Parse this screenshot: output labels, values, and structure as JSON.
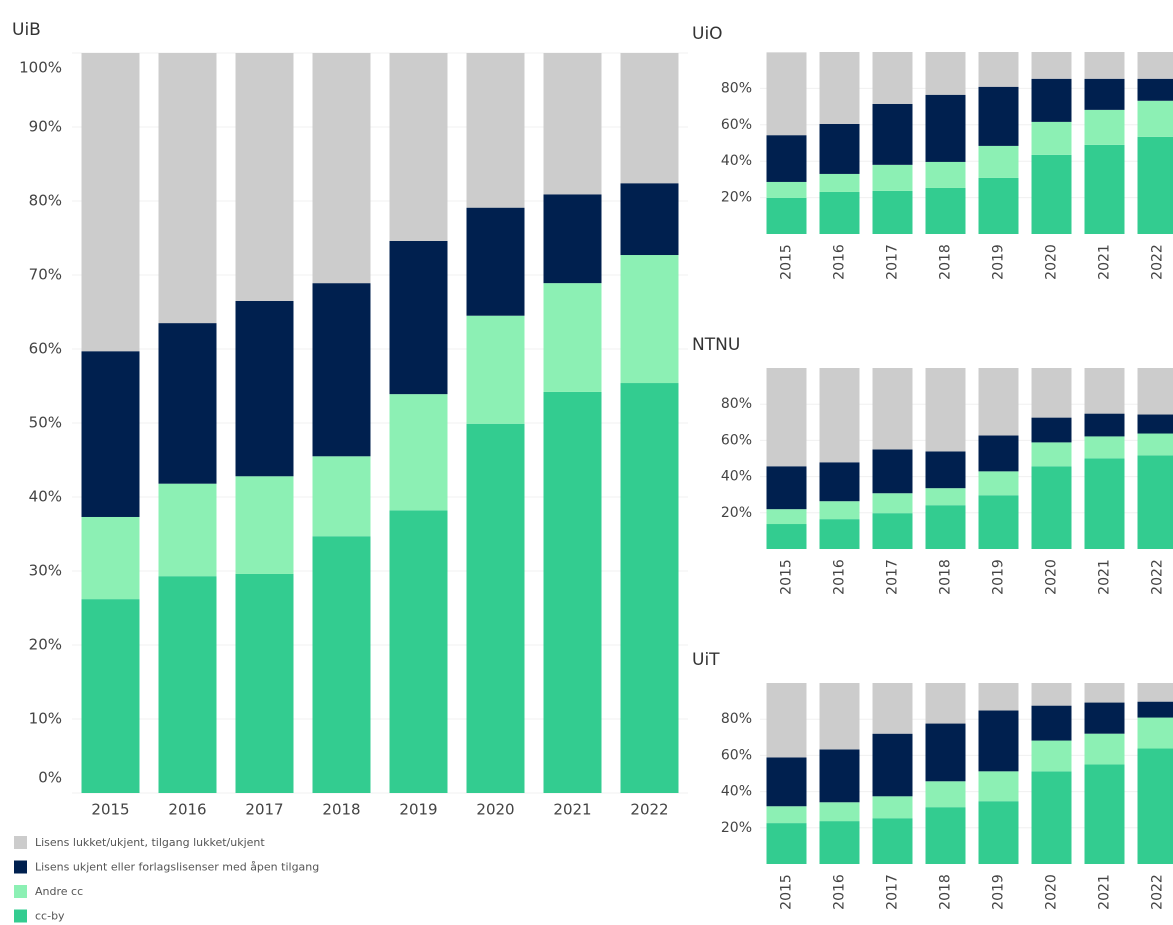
{
  "legend": [
    {
      "name": "Lisens lukket/ukjent, tilgang lukket/ukjent",
      "color": "#cccccc"
    },
    {
      "name": "Lisens ukjent eller forlagslisenser med åpen tilgang",
      "color": "#00204f"
    },
    {
      "name": "Andre cc",
      "color": "#8cf0b4"
    },
    {
      "name": "cc-by",
      "color": "#33cc90"
    }
  ],
  "chart_data": [
    {
      "type": "bar",
      "stacked": true,
      "title": "UiB",
      "grid": true,
      "categories": [
        "2015",
        "2016",
        "2017",
        "2018",
        "2019",
        "2020",
        "2021",
        "2022"
      ],
      "series": [
        {
          "values": [
            40.3,
            36.5,
            33.5,
            31.1,
            25.4,
            20.9,
            19.1,
            17.6
          ]
        },
        {
          "values": [
            22.4,
            21.7,
            23.7,
            23.4,
            20.7,
            14.6,
            12.0,
            9.7
          ]
        },
        {
          "values": [
            11.1,
            12.5,
            13.2,
            10.8,
            15.7,
            14.6,
            14.7,
            17.3
          ]
        },
        {
          "values": [
            26.2,
            29.3,
            29.6,
            34.7,
            38.2,
            49.9,
            54.2,
            55.4
          ]
        }
      ],
      "ylim": [
        0,
        100
      ],
      "yticks": [
        {
          "value": 0,
          "label": "0%"
        },
        {
          "value": 10,
          "label": "10%"
        },
        {
          "value": 20,
          "label": "20%"
        },
        {
          "value": 30,
          "label": "30%"
        },
        {
          "value": 40,
          "label": "40%"
        },
        {
          "value": 50,
          "label": "50%"
        },
        {
          "value": 60,
          "label": "60%"
        },
        {
          "value": 70,
          "label": "70%"
        },
        {
          "value": 80,
          "label": "80%"
        },
        {
          "value": 90,
          "label": "90%"
        },
        {
          "value": 100,
          "label": "100%"
        }
      ]
    },
    {
      "type": "bar",
      "stacked": true,
      "title": "UiO",
      "grid": true,
      "categories": [
        "2015",
        "2016",
        "2017",
        "2018",
        "2019",
        "2020",
        "2021",
        "2022"
      ],
      "series": [
        {
          "values": [
            45.5,
            39.5,
            28.5,
            23.5,
            19.1,
            14.7,
            14.7,
            14.7
          ]
        },
        {
          "values": [
            25.7,
            27.5,
            33.5,
            36.9,
            32.5,
            23.7,
            17.1,
            12.1
          ]
        },
        {
          "values": [
            8.8,
            9.9,
            14.3,
            14.3,
            17.6,
            18.1,
            19.2,
            19.8
          ]
        },
        {
          "values": [
            19.8,
            23.1,
            23.7,
            25.3,
            30.8,
            43.5,
            49.0,
            53.4
          ]
        }
      ],
      "ylim": [
        0,
        100
      ],
      "yticks": [
        {
          "value": 20,
          "label": "20%"
        },
        {
          "value": 40,
          "label": "40%"
        },
        {
          "value": 60,
          "label": "60%"
        },
        {
          "value": 80,
          "label": "80%"
        }
      ]
    },
    {
      "type": "bar",
      "stacked": true,
      "title": "NTNU",
      "grid": true,
      "categories": [
        "2015",
        "2016",
        "2017",
        "2018",
        "2019",
        "2020",
        "2021",
        "2022"
      ],
      "series": [
        {
          "values": [
            54.3,
            52.1,
            45.0,
            46.1,
            37.3,
            27.4,
            25.2,
            25.7
          ]
        },
        {
          "values": [
            23.7,
            21.5,
            24.2,
            20.3,
            19.8,
            13.7,
            12.6,
            10.5
          ]
        },
        {
          "values": [
            8.2,
            9.9,
            11.0,
            9.4,
            13.2,
            13.2,
            12.1,
            12.1
          ]
        },
        {
          "values": [
            13.8,
            16.5,
            19.8,
            24.2,
            29.7,
            45.7,
            50.1,
            51.7
          ]
        }
      ],
      "ylim": [
        0,
        100
      ],
      "yticks": [
        {
          "value": 20,
          "label": "20%"
        },
        {
          "value": 40,
          "label": "40%"
        },
        {
          "value": 60,
          "label": "60%"
        },
        {
          "value": 80,
          "label": "80%"
        }
      ]
    },
    {
      "type": "bar",
      "stacked": true,
      "title": "UiT",
      "grid": true,
      "categories": [
        "2015",
        "2016",
        "2017",
        "2018",
        "2019",
        "2020",
        "2021",
        "2022"
      ],
      "series": [
        {
          "values": [
            41.1,
            36.7,
            28.0,
            22.4,
            15.2,
            12.5,
            10.8,
            10.3
          ]
        },
        {
          "values": [
            27.0,
            29.2,
            34.6,
            31.9,
            33.6,
            19.3,
            17.2,
            8.8
          ]
        },
        {
          "values": [
            9.3,
            10.4,
            12.1,
            14.3,
            16.5,
            17.0,
            17.0,
            17.1
          ]
        },
        {
          "values": [
            22.6,
            23.7,
            25.3,
            31.4,
            34.7,
            51.2,
            55.0,
            63.8
          ]
        }
      ],
      "ylim": [
        0,
        100
      ],
      "yticks": [
        {
          "value": 20,
          "label": "20%"
        },
        {
          "value": 40,
          "label": "40%"
        },
        {
          "value": 60,
          "label": "60%"
        },
        {
          "value": 80,
          "label": "80%"
        }
      ]
    }
  ]
}
